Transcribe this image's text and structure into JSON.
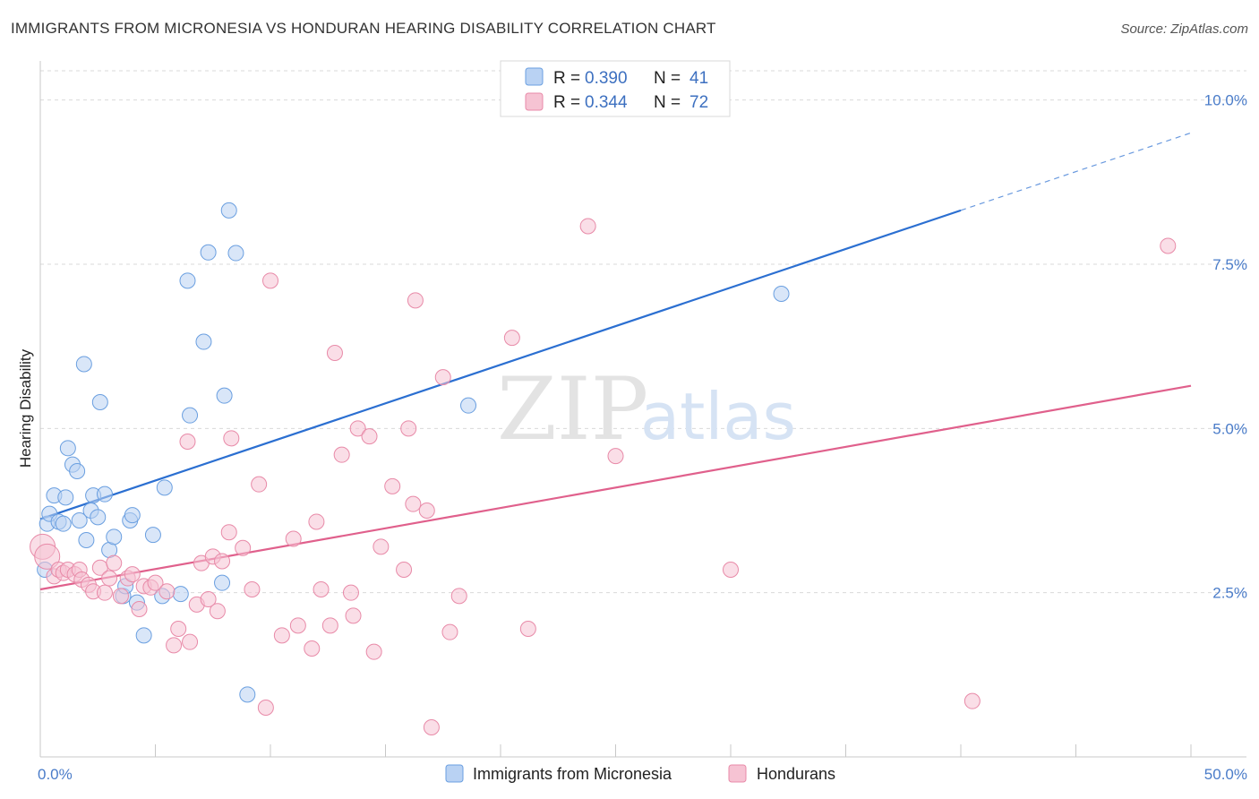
{
  "header": {
    "title": "IMMIGRANTS FROM MICRONESIA VS HONDURAN HEARING DISABILITY CORRELATION CHART",
    "source": "Source: ZipAtlas.com"
  },
  "watermark": {
    "zip": "ZIP",
    "atlas": "atlas"
  },
  "colors": {
    "blue": "#6a9fe0",
    "blue_fill": "#b9d2f3",
    "blue_line": "#2b6fd1",
    "pink": "#e88aa8",
    "pink_fill": "#f6c3d3",
    "pink_line": "#e0608c",
    "grid": "#d9d9d9",
    "axis_text": "#4a7cc9"
  },
  "legend": {
    "rows": [
      {
        "r_label": "R =",
        "r_value": "0.390",
        "n_label": "N =",
        "n_value": "41"
      },
      {
        "r_label": "R =",
        "r_value": "0.344",
        "n_label": "N =",
        "n_value": "72"
      }
    ]
  },
  "chart_data": {
    "type": "scatter",
    "title": "IMMIGRANTS FROM MICRONESIA VS HONDURAN HEARING DISABILITY CORRELATION CHART",
    "xlabel": "",
    "ylabel": "Hearing Disability",
    "xlim": [
      0,
      50
    ],
    "ylim": [
      0,
      10.5
    ],
    "x_tick_labels": [
      "0.0%",
      "50.0%"
    ],
    "y_ticks": [
      2.5,
      5.0,
      7.5,
      10.0
    ],
    "y_tick_labels": [
      "2.5%",
      "5.0%",
      "7.5%",
      "10.0%"
    ],
    "legend_position": "top-center",
    "series": [
      {
        "name": "Immigrants from Micronesia",
        "color": "blue",
        "r": 0.39,
        "n": 41,
        "trend": {
          "x0": 0,
          "y0": 3.62,
          "x1": 40,
          "y1": 8.32,
          "dash_x1": 50,
          "dash_y1": 9.5
        },
        "points": [
          [
            0.2,
            2.85
          ],
          [
            0.3,
            3.55
          ],
          [
            0.4,
            3.7
          ],
          [
            0.6,
            3.98
          ],
          [
            0.8,
            3.58
          ],
          [
            1.0,
            3.55
          ],
          [
            1.1,
            3.95
          ],
          [
            1.2,
            4.7
          ],
          [
            1.4,
            4.45
          ],
          [
            1.6,
            4.35
          ],
          [
            1.7,
            3.6
          ],
          [
            1.9,
            5.98
          ],
          [
            2.0,
            3.3
          ],
          [
            2.2,
            3.75
          ],
          [
            2.3,
            3.98
          ],
          [
            2.5,
            3.65
          ],
          [
            2.6,
            5.4
          ],
          [
            2.8,
            4.0
          ],
          [
            3.0,
            3.15
          ],
          [
            3.2,
            3.35
          ],
          [
            3.6,
            2.45
          ],
          [
            3.7,
            2.6
          ],
          [
            3.9,
            3.6
          ],
          [
            4.0,
            3.68
          ],
          [
            4.2,
            2.35
          ],
          [
            4.5,
            1.85
          ],
          [
            4.9,
            3.38
          ],
          [
            5.3,
            2.45
          ],
          [
            5.4,
            4.1
          ],
          [
            6.1,
            2.48
          ],
          [
            6.4,
            7.25
          ],
          [
            6.5,
            5.2
          ],
          [
            7.1,
            6.32
          ],
          [
            7.3,
            7.68
          ],
          [
            7.9,
            2.65
          ],
          [
            8.0,
            5.5
          ],
          [
            8.2,
            8.32
          ],
          [
            8.5,
            7.67
          ],
          [
            9.0,
            0.95
          ],
          [
            18.6,
            5.35
          ],
          [
            32.2,
            7.05
          ]
        ]
      },
      {
        "name": "Hondurans",
        "color": "pink",
        "r": 0.344,
        "n": 72,
        "trend": {
          "x0": 0,
          "y0": 2.55,
          "x1": 50,
          "y1": 5.65
        },
        "points": [
          [
            0.1,
            3.2
          ],
          [
            0.3,
            3.05
          ],
          [
            0.6,
            2.75
          ],
          [
            0.8,
            2.85
          ],
          [
            1.0,
            2.8
          ],
          [
            1.2,
            2.85
          ],
          [
            1.5,
            2.78
          ],
          [
            1.7,
            2.85
          ],
          [
            1.8,
            2.7
          ],
          [
            2.1,
            2.62
          ],
          [
            2.3,
            2.52
          ],
          [
            2.6,
            2.88
          ],
          [
            2.8,
            2.5
          ],
          [
            3.0,
            2.72
          ],
          [
            3.2,
            2.95
          ],
          [
            3.5,
            2.45
          ],
          [
            3.8,
            2.72
          ],
          [
            4.0,
            2.78
          ],
          [
            4.3,
            2.25
          ],
          [
            4.5,
            2.6
          ],
          [
            4.8,
            2.58
          ],
          [
            5.0,
            2.65
          ],
          [
            5.5,
            2.52
          ],
          [
            5.8,
            1.7
          ],
          [
            6.0,
            1.95
          ],
          [
            6.4,
            4.8
          ],
          [
            6.5,
            1.75
          ],
          [
            6.8,
            2.32
          ],
          [
            7.0,
            2.95
          ],
          [
            7.3,
            2.4
          ],
          [
            7.5,
            3.05
          ],
          [
            7.7,
            2.22
          ],
          [
            7.9,
            2.98
          ],
          [
            8.2,
            3.42
          ],
          [
            8.3,
            4.85
          ],
          [
            8.8,
            3.18
          ],
          [
            9.2,
            2.55
          ],
          [
            9.5,
            4.15
          ],
          [
            9.8,
            0.75
          ],
          [
            10.0,
            7.25
          ],
          [
            10.5,
            1.85
          ],
          [
            11.0,
            3.32
          ],
          [
            11.2,
            2.0
          ],
          [
            11.8,
            1.65
          ],
          [
            12.0,
            3.58
          ],
          [
            12.2,
            2.55
          ],
          [
            12.6,
            2.0
          ],
          [
            12.8,
            6.15
          ],
          [
            13.1,
            4.6
          ],
          [
            13.5,
            2.5
          ],
          [
            13.6,
            2.15
          ],
          [
            13.8,
            5.0
          ],
          [
            14.3,
            4.88
          ],
          [
            14.5,
            1.6
          ],
          [
            14.8,
            3.2
          ],
          [
            15.3,
            4.12
          ],
          [
            15.8,
            2.85
          ],
          [
            16.0,
            5.0
          ],
          [
            16.2,
            3.85
          ],
          [
            16.3,
            6.95
          ],
          [
            16.8,
            3.75
          ],
          [
            17.0,
            0.45
          ],
          [
            17.5,
            5.78
          ],
          [
            17.8,
            1.9
          ],
          [
            18.2,
            2.45
          ],
          [
            20.5,
            6.38
          ],
          [
            21.2,
            1.95
          ],
          [
            23.8,
            8.08
          ],
          [
            25.0,
            4.58
          ],
          [
            30.0,
            2.85
          ],
          [
            40.5,
            0.85
          ],
          [
            49.0,
            7.78
          ]
        ]
      }
    ]
  }
}
